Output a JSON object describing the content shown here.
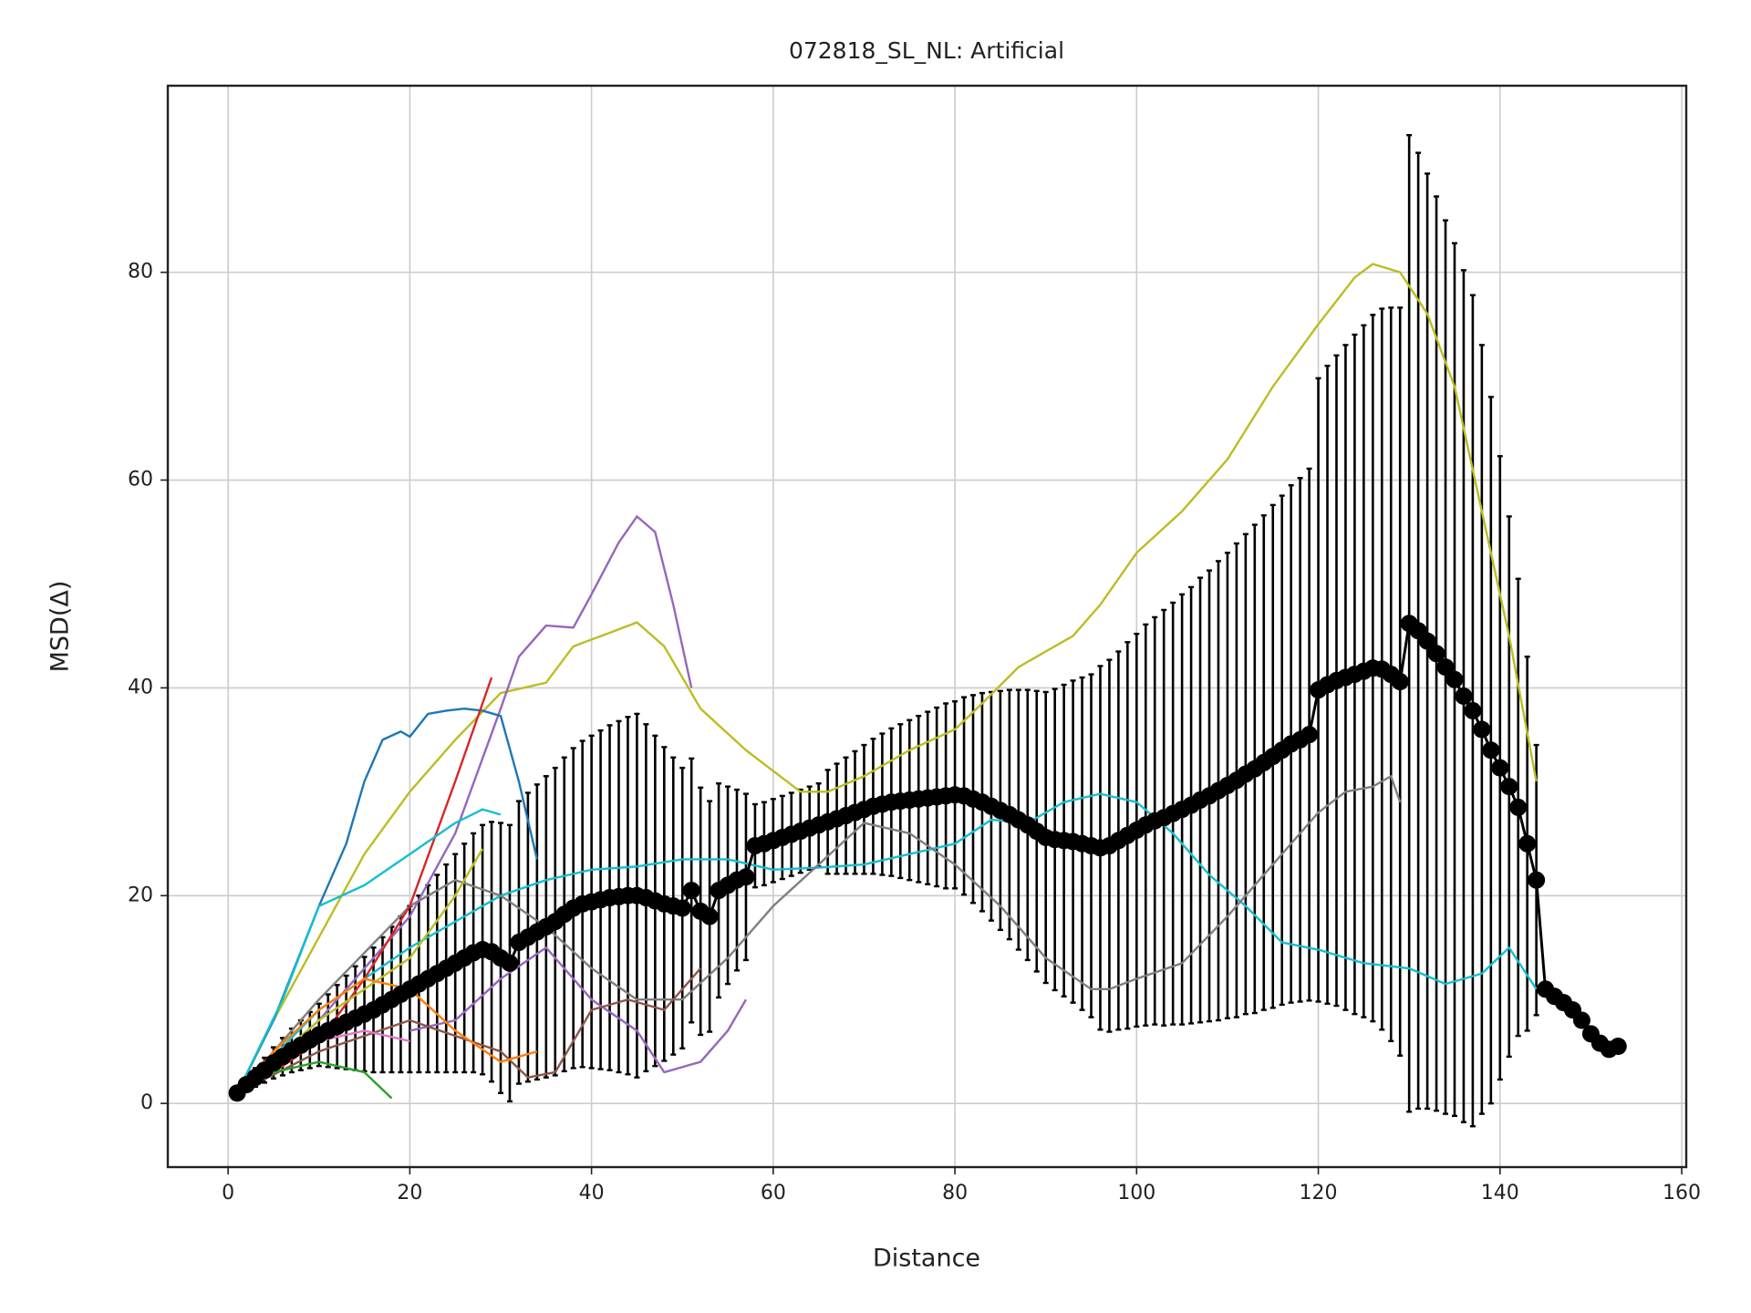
{
  "chart_data": {
    "type": "line",
    "title": "072818_SL_NL: Artificial",
    "x_label": "Distance",
    "y_label": "MSD(Δ)",
    "xlim": [
      -6.64,
      160.5
    ],
    "ylim": [
      -6.13,
      97.96
    ],
    "xticks": [
      0,
      20,
      40,
      60,
      80,
      100,
      120,
      140,
      160
    ],
    "yticks": [
      0,
      20,
      40,
      60,
      80
    ],
    "grid": true,
    "series": [
      {
        "color": "#bcbd22",
        "x": [
          1,
          5,
          10,
          15,
          20,
          25,
          30,
          35,
          38,
          42,
          45,
          48,
          52,
          57,
          60,
          63,
          66,
          70,
          75,
          80,
          83,
          87,
          90,
          93,
          96,
          100,
          105,
          110,
          115,
          120,
          124,
          126,
          129,
          132,
          135,
          138,
          141,
          144
        ],
        "values": [
          1,
          8,
          16,
          24,
          30,
          35,
          39.5,
          40.5,
          44,
          45.3,
          46.3,
          44,
          38,
          34,
          32,
          30,
          30,
          31.5,
          34,
          36,
          38.5,
          42,
          43.5,
          45,
          48,
          53,
          57,
          62,
          69,
          75,
          79.5,
          80.8,
          80,
          76,
          69,
          57,
          45,
          31
        ]
      },
      {
        "color": "#17becf",
        "x": [
          1,
          10,
          20,
          30,
          35,
          40,
          45,
          50,
          55,
          60,
          65,
          70,
          75,
          80,
          84,
          88,
          92,
          96,
          100,
          104,
          108,
          112,
          116,
          120,
          125,
          130,
          134,
          138,
          141,
          144
        ],
        "values": [
          1,
          9,
          15,
          20,
          21.5,
          22.5,
          22.8,
          23.5,
          23.5,
          22.5,
          22.7,
          23,
          24,
          25,
          27.3,
          27,
          29,
          29.8,
          29,
          26,
          22,
          19,
          15.5,
          14.8,
          13.5,
          13,
          11.5,
          12.5,
          15,
          11
        ]
      },
      {
        "color": "#7f7f7f",
        "x": [
          1,
          10,
          20,
          25,
          30,
          35,
          40,
          45,
          50,
          55,
          60,
          65,
          70,
          75,
          80,
          85,
          90,
          95,
          97,
          100,
          105,
          110,
          115,
          120,
          123,
          126,
          128,
          129
        ],
        "values": [
          1,
          10,
          19,
          21.5,
          20,
          17,
          13,
          10,
          10,
          14,
          19,
          23,
          27,
          26,
          23,
          19,
          14,
          11,
          11,
          12,
          13.5,
          18,
          23,
          28,
          30,
          30.5,
          31.5,
          29
        ]
      },
      {
        "color": "#9467bd",
        "x": [
          1,
          10,
          15,
          20,
          25,
          30,
          32,
          35,
          38,
          40,
          43,
          45,
          47,
          49,
          51
        ],
        "values": [
          1,
          8,
          13,
          18,
          26,
          38,
          43,
          46,
          45.8,
          49,
          54,
          56.5,
          55,
          48,
          40
        ]
      },
      {
        "color": "#1f77b4",
        "x": [
          1,
          5,
          10,
          13,
          15,
          17,
          19,
          20,
          22,
          24,
          26,
          28,
          30,
          32,
          34
        ],
        "values": [
          1,
          8,
          19,
          25,
          31,
          35,
          35.8,
          35.3,
          37.5,
          37.8,
          38,
          37.8,
          37.3,
          31,
          23.5
        ]
      },
      {
        "color": "#d62728",
        "x": [
          1,
          5,
          10,
          15,
          20,
          25,
          29
        ],
        "values": [
          1,
          3,
          6,
          12,
          19,
          31,
          41
        ]
      },
      {
        "color": "#bcbd22",
        "x": [
          1,
          10,
          20,
          25,
          28
        ],
        "values": [
          1,
          8,
          14,
          20,
          24.5
        ]
      },
      {
        "color": "#17becf",
        "x": [
          1,
          6,
          10,
          15,
          20,
          25,
          28,
          30
        ],
        "values": [
          1,
          10,
          19,
          21,
          24,
          27,
          28.3,
          27.8
        ]
      },
      {
        "color": "#9467bd",
        "x": [
          20,
          25,
          30,
          35,
          40,
          45,
          48,
          52,
          55,
          57
        ],
        "values": [
          7,
          8,
          12,
          15,
          10,
          7,
          3,
          4,
          7,
          10
        ]
      },
      {
        "color": "#8c564b",
        "x": [
          1,
          10,
          20,
          30,
          33,
          36,
          40,
          44,
          48,
          52
        ],
        "values": [
          1,
          5,
          8,
          5,
          2.5,
          3,
          9,
          10,
          9,
          13
        ]
      },
      {
        "color": "#ff7f0e",
        "x": [
          1,
          5,
          10,
          15,
          20,
          25,
          30,
          34
        ],
        "values": [
          1,
          5,
          9,
          12,
          11,
          7,
          4,
          5
        ]
      },
      {
        "color": "#2ca02c",
        "x": [
          1,
          5,
          10,
          15,
          18
        ],
        "values": [
          1,
          3,
          4,
          3,
          0.5
        ]
      },
      {
        "color": "#e377c2",
        "x": [
          1,
          5,
          10,
          15,
          20
        ],
        "values": [
          1,
          4,
          6,
          7,
          6
        ]
      },
      {
        "color": "#000000",
        "marker": "o",
        "x": [
          1,
          2,
          3,
          4,
          5,
          6,
          7,
          8,
          9,
          10,
          11,
          12,
          13,
          14,
          15,
          16,
          17,
          18,
          19,
          20,
          21,
          22,
          23,
          24,
          25,
          26,
          27,
          28,
          29,
          30,
          31,
          32,
          33,
          34,
          35,
          36,
          37,
          38,
          39,
          40,
          41,
          42,
          43,
          44,
          45,
          46,
          47,
          48,
          49,
          50,
          51,
          52,
          53,
          54,
          55,
          56,
          57,
          58,
          59,
          60,
          61,
          62,
          63,
          64,
          65,
          66,
          67,
          68,
          69,
          70,
          71,
          72,
          73,
          74,
          75,
          76,
          77,
          78,
          79,
          80,
          81,
          82,
          83,
          84,
          85,
          86,
          87,
          88,
          89,
          90,
          91,
          92,
          93,
          94,
          95,
          96,
          97,
          98,
          99,
          100,
          101,
          102,
          103,
          104,
          105,
          106,
          107,
          108,
          109,
          110,
          111,
          112,
          113,
          114,
          115,
          116,
          117,
          118,
          119,
          120,
          121,
          122,
          123,
          124,
          125,
          126,
          127,
          128,
          129,
          130,
          131,
          132,
          133,
          134,
          135,
          136,
          137,
          138,
          139,
          140,
          141,
          142,
          143,
          144,
          145,
          146,
          147,
          148,
          149,
          150,
          151,
          152,
          153
        ],
        "values": [
          1,
          1.8,
          2.5,
          3.2,
          3.9,
          4.5,
          5.1,
          5.6,
          6.1,
          6.6,
          7,
          7.4,
          7.8,
          8.2,
          8.6,
          9,
          9.5,
          10,
          10.5,
          11,
          11.5,
          12,
          12.5,
          13,
          13.5,
          14,
          14.5,
          14.8,
          14.6,
          14,
          13.5,
          15.5,
          16,
          16.5,
          17,
          17.5,
          18.2,
          18.8,
          19.2,
          19.4,
          19.6,
          19.8,
          19.9,
          20,
          20,
          19.8,
          19.5,
          19.2,
          19,
          18.8,
          20.5,
          18.5,
          18,
          20.5,
          21,
          21.5,
          21.8,
          24.8,
          25,
          25.3,
          25.6,
          25.9,
          26.2,
          26.5,
          26.8,
          27.1,
          27.4,
          27.7,
          28,
          28.3,
          28.6,
          28.8,
          29,
          29.1,
          29.2,
          29.3,
          29.4,
          29.5,
          29.6,
          29.7,
          29.6,
          29.3,
          29,
          28.6,
          28.2,
          27.8,
          27.3,
          26.8,
          26.2,
          25.6,
          25.4,
          25.3,
          25.2,
          25,
          24.8,
          24.6,
          24.8,
          25.3,
          25.8,
          26.3,
          26.8,
          27.2,
          27.5,
          27.9,
          28.3,
          28.7,
          29.2,
          29.6,
          30.1,
          30.6,
          31.1,
          31.7,
          32.2,
          32.8,
          33.4,
          34,
          34.6,
          35,
          35.5,
          39.8,
          40.3,
          40.7,
          41,
          41.3,
          41.6,
          41.9,
          41.8,
          41.3,
          40.6,
          46.2,
          45.5,
          44.5,
          43.3,
          42,
          40.8,
          39.2,
          37.8,
          36,
          34,
          32.3,
          30.5,
          28.5,
          25,
          21.5,
          11,
          10.3,
          9.7,
          9,
          8,
          6.7,
          5.8,
          5.2,
          5.5
        ],
        "error": [
          0.3,
          0.6,
          0.9,
          1.2,
          1.5,
          1.8,
          2.1,
          2.4,
          2.7,
          3,
          3.5,
          4,
          4.5,
          5,
          5.5,
          6,
          6.5,
          7,
          7.5,
          8,
          8.5,
          9,
          9.5,
          10,
          10.5,
          11,
          11.5,
          12,
          12.5,
          13,
          13.3,
          13.6,
          13.9,
          14.2,
          14.5,
          14.8,
          15.1,
          15.4,
          15.7,
          16,
          16.3,
          16.6,
          16.9,
          17.2,
          17.5,
          16.7,
          15.9,
          15.1,
          14.3,
          13.5,
          12.7,
          11.9,
          11.1,
          10.3,
          9.5,
          8.7,
          8,
          4,
          4,
          4,
          4,
          4,
          4,
          4,
          4,
          5,
          5.3,
          5.6,
          5.9,
          6.2,
          6.5,
          6.8,
          7.1,
          7.4,
          7.7,
          8,
          8.3,
          8.6,
          8.9,
          9,
          9.5,
          10,
          10.5,
          11,
          11.5,
          12,
          12.5,
          13,
          13.5,
          14,
          14.5,
          15,
          15.5,
          16,
          16.5,
          17.5,
          17.9,
          18.2,
          18.6,
          18.9,
          19.3,
          19.6,
          20,
          20.3,
          20.7,
          21,
          21.4,
          21.7,
          22.1,
          22.4,
          22.8,
          23.1,
          23.5,
          23.8,
          24.2,
          24.5,
          24.9,
          25.2,
          25.6,
          30,
          30.7,
          31.3,
          32,
          32.7,
          33.3,
          34,
          34.7,
          35.3,
          36,
          47,
          46,
          45,
          44,
          43,
          42,
          41,
          40,
          37,
          34,
          30,
          26,
          22,
          18,
          13,
          null,
          null,
          null,
          null,
          null,
          null,
          null,
          null,
          null
        ]
      }
    ]
  }
}
